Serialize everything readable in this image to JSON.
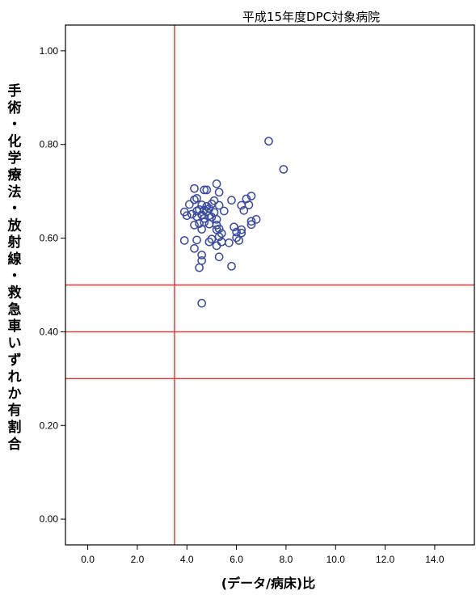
{
  "chart_data": {
    "type": "scatter",
    "title": "平成15年度DPC対象病院",
    "xlabel": "(データ/病床)比",
    "ylabel": "手術・化学療法・放射線・救急車いずれか有割合",
    "xlim": [
      -0.9,
      15.6
    ],
    "ylim": [
      -0.055,
      1.055
    ],
    "x_ticks": [
      0.0,
      2.0,
      4.0,
      6.0,
      8.0,
      10.0,
      12.0,
      14.0
    ],
    "x_tick_labels": [
      "0.0",
      "2.0",
      "4.0",
      "6.0",
      "8.0",
      "10.0",
      "12.0",
      "14.0"
    ],
    "y_ticks": [
      0.0,
      0.2,
      0.4,
      0.6,
      0.8,
      1.0
    ],
    "y_tick_labels": [
      "0.00",
      "0.20",
      "0.40",
      "0.60",
      "0.80",
      "1.00"
    ],
    "reference_lines": {
      "vertical": [
        3.5
      ],
      "horizontal": [
        0.5,
        0.4,
        0.3
      ],
      "color": "#e8302c"
    },
    "grid": false,
    "marker": "open-circle",
    "marker_color": "#3a4aa0",
    "points": [
      [
        7.3,
        0.807
      ],
      [
        7.9,
        0.747
      ],
      [
        4.3,
        0.706
      ],
      [
        4.7,
        0.703
      ],
      [
        4.8,
        0.703
      ],
      [
        5.2,
        0.716
      ],
      [
        5.3,
        0.698
      ],
      [
        6.6,
        0.69
      ],
      [
        6.4,
        0.684
      ],
      [
        5.8,
        0.681
      ],
      [
        5.1,
        0.68
      ],
      [
        4.3,
        0.682
      ],
      [
        4.4,
        0.685
      ],
      [
        4.1,
        0.672
      ],
      [
        4.6,
        0.671
      ],
      [
        4.8,
        0.668
      ],
      [
        5.0,
        0.673
      ],
      [
        5.3,
        0.67
      ],
      [
        6.2,
        0.67
      ],
      [
        6.5,
        0.671
      ],
      [
        3.9,
        0.656
      ],
      [
        4.2,
        0.651
      ],
      [
        4.4,
        0.658
      ],
      [
        4.5,
        0.661
      ],
      [
        4.7,
        0.66
      ],
      [
        4.8,
        0.657
      ],
      [
        4.9,
        0.663
      ],
      [
        5.1,
        0.655
      ],
      [
        5.5,
        0.658
      ],
      [
        6.3,
        0.659
      ],
      [
        4.0,
        0.648
      ],
      [
        4.4,
        0.646
      ],
      [
        4.6,
        0.65
      ],
      [
        4.7,
        0.642
      ],
      [
        4.9,
        0.648
      ],
      [
        5.0,
        0.645
      ],
      [
        5.2,
        0.64
      ],
      [
        6.8,
        0.64
      ],
      [
        6.6,
        0.636
      ],
      [
        6.6,
        0.629
      ],
      [
        4.3,
        0.628
      ],
      [
        4.5,
        0.631
      ],
      [
        4.7,
        0.634
      ],
      [
        4.9,
        0.63
      ],
      [
        5.2,
        0.628
      ],
      [
        4.6,
        0.619
      ],
      [
        5.2,
        0.618
      ],
      [
        5.3,
        0.62
      ],
      [
        5.9,
        0.624
      ],
      [
        6.2,
        0.618
      ],
      [
        5.4,
        0.61
      ],
      [
        6.0,
        0.613
      ],
      [
        6.2,
        0.611
      ],
      [
        5.3,
        0.603
      ],
      [
        3.9,
        0.595
      ],
      [
        4.4,
        0.596
      ],
      [
        5.0,
        0.598
      ],
      [
        5.4,
        0.592
      ],
      [
        5.7,
        0.59
      ],
      [
        6.1,
        0.595
      ],
      [
        6.0,
        0.601
      ],
      [
        4.9,
        0.592
      ],
      [
        5.2,
        0.584
      ],
      [
        4.3,
        0.578
      ],
      [
        4.6,
        0.564
      ],
      [
        5.3,
        0.56
      ],
      [
        4.6,
        0.552
      ],
      [
        4.5,
        0.537
      ],
      [
        5.8,
        0.54
      ],
      [
        4.6,
        0.461
      ]
    ]
  }
}
